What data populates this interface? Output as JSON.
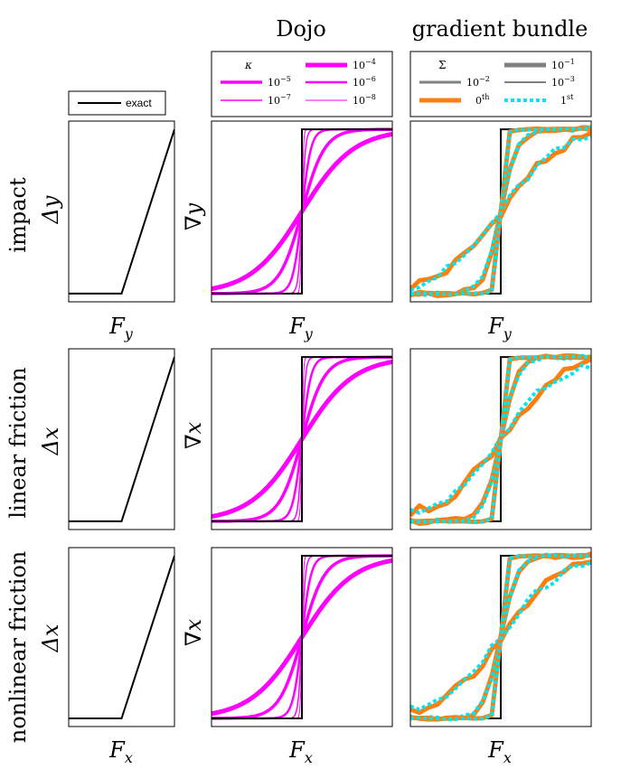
{
  "columns": {
    "dojo_title": "Dojo",
    "bundle_title": "gradient bundle"
  },
  "rows": [
    {
      "row_label": "impact",
      "delta_label": "Δy",
      "grad_label": "∇y",
      "xlabel_main": "F",
      "xlabel_sub": "y"
    },
    {
      "row_label": "linear friction",
      "delta_label": "Δx",
      "grad_label": "∇x",
      "xlabel_main": "F",
      "xlabel_sub": "x"
    },
    {
      "row_label": "nonlinear friction",
      "delta_label": "Δx",
      "grad_label": "∇x",
      "xlabel_main": "F",
      "xlabel_sub": "x"
    }
  ],
  "legends": {
    "exact": {
      "label": "exact"
    },
    "dojo": {
      "title": "κ",
      "entries": [
        {
          "label": "10",
          "exp": "−4"
        },
        {
          "label": "10",
          "exp": "−5"
        },
        {
          "label": "10",
          "exp": "−6"
        },
        {
          "label": "10",
          "exp": "−7"
        },
        {
          "label": "10",
          "exp": "−8"
        }
      ]
    },
    "bundle": {
      "title": "Σ",
      "entries": [
        {
          "label": "10",
          "exp": "−1"
        },
        {
          "label": "10",
          "exp": "−2"
        },
        {
          "label": "10",
          "exp": "−3"
        },
        {
          "label": "0",
          "exp": "th"
        },
        {
          "label": "1",
          "exp": "st"
        }
      ]
    }
  },
  "colors": {
    "exact": "#000000",
    "dojo": "#ff00ff",
    "zeroth": "#ff7f0e",
    "first": "#00e5ee",
    "sigma": "#808080"
  },
  "chart_data": [
    {
      "type": "line",
      "panel": "exact",
      "series": [
        {
          "name": "exact",
          "x": [
            0,
            0.5,
            1
          ],
          "y": [
            0,
            0,
            1
          ]
        }
      ],
      "xlim": [
        0,
        1
      ],
      "ylim": [
        -0.05,
        1.05
      ],
      "grid": false,
      "legend_position": "above"
    },
    {
      "type": "line",
      "panel": "dojo",
      "xlim": [
        0,
        1
      ],
      "ylim": [
        -0.05,
        1.05
      ],
      "grid": false,
      "legend_position": "above",
      "step_at": 0.5,
      "series": [
        {
          "name": "exact",
          "kind": "step"
        },
        {
          "name": "κ=10^-4",
          "kind": "sigmoid",
          "steepness": 7
        },
        {
          "name": "κ=10^-5",
          "kind": "sigmoid",
          "steepness": 16
        },
        {
          "name": "κ=10^-6",
          "kind": "sigmoid",
          "steepness": 40
        },
        {
          "name": "κ=10^-7",
          "kind": "sigmoid",
          "steepness": 100
        },
        {
          "name": "κ=10^-8",
          "kind": "sigmoid",
          "steepness": 250
        }
      ]
    },
    {
      "type": "line",
      "panel": "gradient bundle",
      "xlim": [
        0,
        1
      ],
      "ylim": [
        -0.05,
        1.05
      ],
      "grid": false,
      "legend_position": "above",
      "step_at": 0.5,
      "series": [
        {
          "name": "exact",
          "kind": "step"
        },
        {
          "name": "Σ=10^-1",
          "kind": "sigmoid",
          "steepness": 6,
          "noise": 0.035
        },
        {
          "name": "Σ=10^-2",
          "kind": "sigmoid",
          "steepness": 22,
          "noise": 0.015
        },
        {
          "name": "Σ=10^-3",
          "kind": "sigmoid",
          "steepness": 80,
          "noise": 0.005
        }
      ]
    }
  ]
}
